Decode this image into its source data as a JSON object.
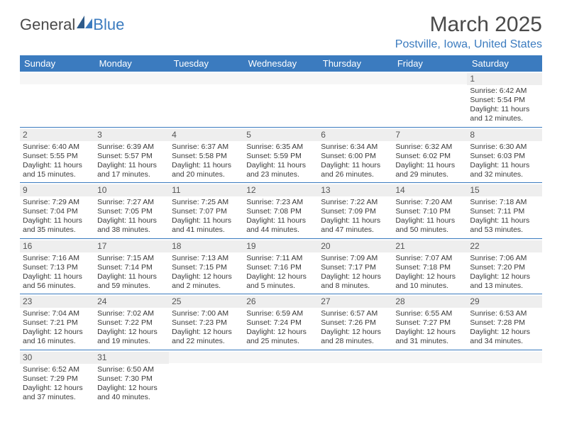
{
  "brand": {
    "part1": "General",
    "part2": "Blue"
  },
  "title": "March 2025",
  "location": "Postville, Iowa, United States",
  "colors": {
    "header_bg": "#3b7bbf",
    "header_fg": "#ffffff",
    "daynum_bg": "#eeeeee",
    "cell_border": "#3b7bbf",
    "text": "#3a3a3a"
  },
  "table": {
    "columns": [
      "Sunday",
      "Monday",
      "Tuesday",
      "Wednesday",
      "Thursday",
      "Friday",
      "Saturday"
    ],
    "col_count": 7,
    "font_size_cell": 10.5,
    "font_size_header": 13
  },
  "weeks": [
    [
      {
        "day": "",
        "sunrise": "",
        "sunset": "",
        "daylight": ""
      },
      {
        "day": "",
        "sunrise": "",
        "sunset": "",
        "daylight": ""
      },
      {
        "day": "",
        "sunrise": "",
        "sunset": "",
        "daylight": ""
      },
      {
        "day": "",
        "sunrise": "",
        "sunset": "",
        "daylight": ""
      },
      {
        "day": "",
        "sunrise": "",
        "sunset": "",
        "daylight": ""
      },
      {
        "day": "",
        "sunrise": "",
        "sunset": "",
        "daylight": ""
      },
      {
        "day": "1",
        "sunrise": "Sunrise: 6:42 AM",
        "sunset": "Sunset: 5:54 PM",
        "daylight": "Daylight: 11 hours and 12 minutes."
      }
    ],
    [
      {
        "day": "2",
        "sunrise": "Sunrise: 6:40 AM",
        "sunset": "Sunset: 5:55 PM",
        "daylight": "Daylight: 11 hours and 15 minutes."
      },
      {
        "day": "3",
        "sunrise": "Sunrise: 6:39 AM",
        "sunset": "Sunset: 5:57 PM",
        "daylight": "Daylight: 11 hours and 17 minutes."
      },
      {
        "day": "4",
        "sunrise": "Sunrise: 6:37 AM",
        "sunset": "Sunset: 5:58 PM",
        "daylight": "Daylight: 11 hours and 20 minutes."
      },
      {
        "day": "5",
        "sunrise": "Sunrise: 6:35 AM",
        "sunset": "Sunset: 5:59 PM",
        "daylight": "Daylight: 11 hours and 23 minutes."
      },
      {
        "day": "6",
        "sunrise": "Sunrise: 6:34 AM",
        "sunset": "Sunset: 6:00 PM",
        "daylight": "Daylight: 11 hours and 26 minutes."
      },
      {
        "day": "7",
        "sunrise": "Sunrise: 6:32 AM",
        "sunset": "Sunset: 6:02 PM",
        "daylight": "Daylight: 11 hours and 29 minutes."
      },
      {
        "day": "8",
        "sunrise": "Sunrise: 6:30 AM",
        "sunset": "Sunset: 6:03 PM",
        "daylight": "Daylight: 11 hours and 32 minutes."
      }
    ],
    [
      {
        "day": "9",
        "sunrise": "Sunrise: 7:29 AM",
        "sunset": "Sunset: 7:04 PM",
        "daylight": "Daylight: 11 hours and 35 minutes."
      },
      {
        "day": "10",
        "sunrise": "Sunrise: 7:27 AM",
        "sunset": "Sunset: 7:05 PM",
        "daylight": "Daylight: 11 hours and 38 minutes."
      },
      {
        "day": "11",
        "sunrise": "Sunrise: 7:25 AM",
        "sunset": "Sunset: 7:07 PM",
        "daylight": "Daylight: 11 hours and 41 minutes."
      },
      {
        "day": "12",
        "sunrise": "Sunrise: 7:23 AM",
        "sunset": "Sunset: 7:08 PM",
        "daylight": "Daylight: 11 hours and 44 minutes."
      },
      {
        "day": "13",
        "sunrise": "Sunrise: 7:22 AM",
        "sunset": "Sunset: 7:09 PM",
        "daylight": "Daylight: 11 hours and 47 minutes."
      },
      {
        "day": "14",
        "sunrise": "Sunrise: 7:20 AM",
        "sunset": "Sunset: 7:10 PM",
        "daylight": "Daylight: 11 hours and 50 minutes."
      },
      {
        "day": "15",
        "sunrise": "Sunrise: 7:18 AM",
        "sunset": "Sunset: 7:11 PM",
        "daylight": "Daylight: 11 hours and 53 minutes."
      }
    ],
    [
      {
        "day": "16",
        "sunrise": "Sunrise: 7:16 AM",
        "sunset": "Sunset: 7:13 PM",
        "daylight": "Daylight: 11 hours and 56 minutes."
      },
      {
        "day": "17",
        "sunrise": "Sunrise: 7:15 AM",
        "sunset": "Sunset: 7:14 PM",
        "daylight": "Daylight: 11 hours and 59 minutes."
      },
      {
        "day": "18",
        "sunrise": "Sunrise: 7:13 AM",
        "sunset": "Sunset: 7:15 PM",
        "daylight": "Daylight: 12 hours and 2 minutes."
      },
      {
        "day": "19",
        "sunrise": "Sunrise: 7:11 AM",
        "sunset": "Sunset: 7:16 PM",
        "daylight": "Daylight: 12 hours and 5 minutes."
      },
      {
        "day": "20",
        "sunrise": "Sunrise: 7:09 AM",
        "sunset": "Sunset: 7:17 PM",
        "daylight": "Daylight: 12 hours and 8 minutes."
      },
      {
        "day": "21",
        "sunrise": "Sunrise: 7:07 AM",
        "sunset": "Sunset: 7:18 PM",
        "daylight": "Daylight: 12 hours and 10 minutes."
      },
      {
        "day": "22",
        "sunrise": "Sunrise: 7:06 AM",
        "sunset": "Sunset: 7:20 PM",
        "daylight": "Daylight: 12 hours and 13 minutes."
      }
    ],
    [
      {
        "day": "23",
        "sunrise": "Sunrise: 7:04 AM",
        "sunset": "Sunset: 7:21 PM",
        "daylight": "Daylight: 12 hours and 16 minutes."
      },
      {
        "day": "24",
        "sunrise": "Sunrise: 7:02 AM",
        "sunset": "Sunset: 7:22 PM",
        "daylight": "Daylight: 12 hours and 19 minutes."
      },
      {
        "day": "25",
        "sunrise": "Sunrise: 7:00 AM",
        "sunset": "Sunset: 7:23 PM",
        "daylight": "Daylight: 12 hours and 22 minutes."
      },
      {
        "day": "26",
        "sunrise": "Sunrise: 6:59 AM",
        "sunset": "Sunset: 7:24 PM",
        "daylight": "Daylight: 12 hours and 25 minutes."
      },
      {
        "day": "27",
        "sunrise": "Sunrise: 6:57 AM",
        "sunset": "Sunset: 7:26 PM",
        "daylight": "Daylight: 12 hours and 28 minutes."
      },
      {
        "day": "28",
        "sunrise": "Sunrise: 6:55 AM",
        "sunset": "Sunset: 7:27 PM",
        "daylight": "Daylight: 12 hours and 31 minutes."
      },
      {
        "day": "29",
        "sunrise": "Sunrise: 6:53 AM",
        "sunset": "Sunset: 7:28 PM",
        "daylight": "Daylight: 12 hours and 34 minutes."
      }
    ],
    [
      {
        "day": "30",
        "sunrise": "Sunrise: 6:52 AM",
        "sunset": "Sunset: 7:29 PM",
        "daylight": "Daylight: 12 hours and 37 minutes."
      },
      {
        "day": "31",
        "sunrise": "Sunrise: 6:50 AM",
        "sunset": "Sunset: 7:30 PM",
        "daylight": "Daylight: 12 hours and 40 minutes."
      },
      {
        "day": "",
        "sunrise": "",
        "sunset": "",
        "daylight": ""
      },
      {
        "day": "",
        "sunrise": "",
        "sunset": "",
        "daylight": ""
      },
      {
        "day": "",
        "sunrise": "",
        "sunset": "",
        "daylight": ""
      },
      {
        "day": "",
        "sunrise": "",
        "sunset": "",
        "daylight": ""
      },
      {
        "day": "",
        "sunrise": "",
        "sunset": "",
        "daylight": ""
      }
    ]
  ]
}
